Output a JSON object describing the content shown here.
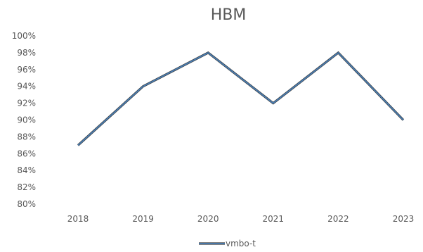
{
  "chart_data": {
    "type": "line",
    "title": "HBM",
    "xlabel": "",
    "ylabel": "",
    "categories": [
      "2018",
      "2019",
      "2020",
      "2021",
      "2022",
      "2023"
    ],
    "series": [
      {
        "name": "vmbo-t",
        "values": [
          0.87,
          0.94,
          0.98,
          0.92,
          0.98,
          0.9
        ],
        "color": "#4a7fb5",
        "outline_color": "#3a3a3a"
      }
    ],
    "ylim": [
      0.8,
      1.0
    ],
    "yticks": [
      "80%",
      "82%",
      "84%",
      "86%",
      "88%",
      "90%",
      "92%",
      "94%",
      "96%",
      "98%",
      "100%"
    ],
    "grid": false,
    "legend": "bottom"
  }
}
